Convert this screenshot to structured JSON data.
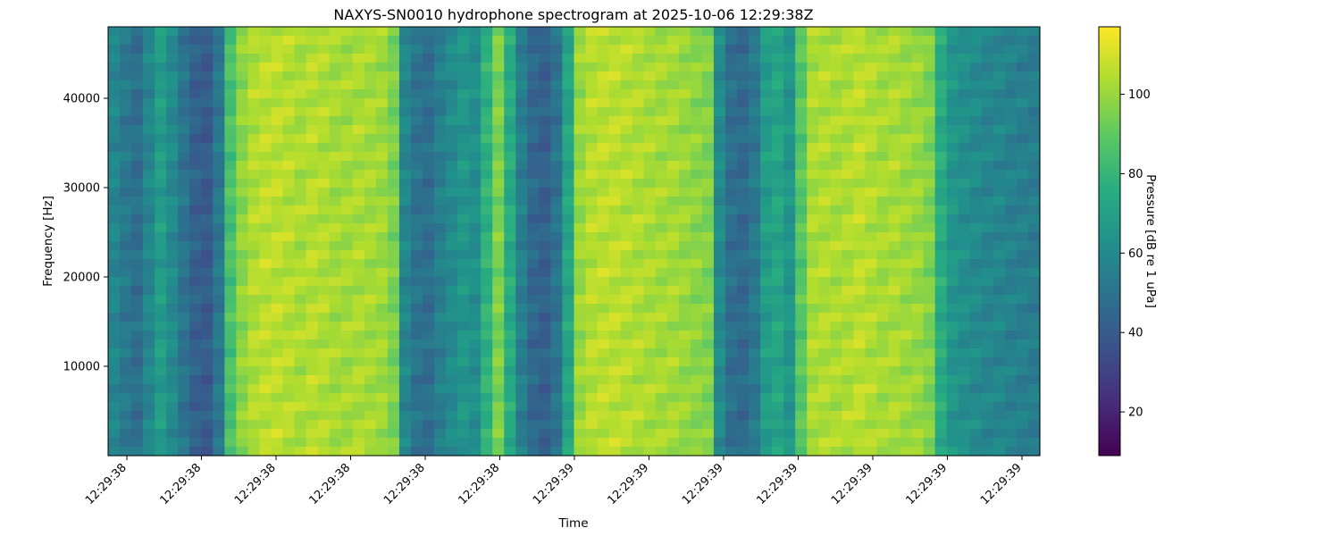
{
  "chart_data": {
    "type": "heatmap",
    "title": "NAXYS-SN0010 hydrophone spectrogram at 2025-10-06 12:29:38Z",
    "xlabel": "Time",
    "ylabel": "Frequency [Hz]",
    "x_tick_labels": [
      "12:29:38",
      "12:29:38",
      "12:29:38",
      "12:29:38",
      "12:29:38",
      "12:29:38",
      "12:29:39",
      "12:29:39",
      "12:29:39",
      "12:29:39",
      "12:29:39",
      "12:29:39",
      "12:29:39"
    ],
    "y_ticks": [
      10000,
      20000,
      30000,
      40000
    ],
    "y_tick_labels": [
      "10000",
      "20000",
      "30000",
      "40000"
    ],
    "ylim": [
      0,
      48000
    ],
    "colorbar": {
      "label": "Pressure [dB re 1 uPa]",
      "ticks": [
        20,
        40,
        60,
        80,
        100
      ],
      "tick_labels": [
        "20",
        "40",
        "60",
        "80",
        "100"
      ],
      "range": [
        9,
        117
      ],
      "colormap": "viridis"
    },
    "time_profile_db": [
      58,
      52,
      48,
      58,
      68,
      60,
      50,
      42,
      40,
      52,
      85,
      98,
      104,
      106,
      106,
      105,
      103,
      105,
      104,
      102,
      102,
      103,
      102,
      101,
      95,
      58,
      50,
      48,
      55,
      60,
      65,
      62,
      78,
      95,
      75,
      55,
      45,
      42,
      50,
      72,
      100,
      105,
      106,
      106,
      105,
      104,
      103,
      102,
      102,
      100,
      98,
      96,
      60,
      48,
      46,
      52,
      68,
      72,
      65,
      88,
      103,
      104,
      103,
      104,
      106,
      104,
      102,
      103,
      101,
      100,
      96,
      75,
      65,
      62,
      60,
      58,
      58,
      56,
      55,
      54
    ]
  }
}
